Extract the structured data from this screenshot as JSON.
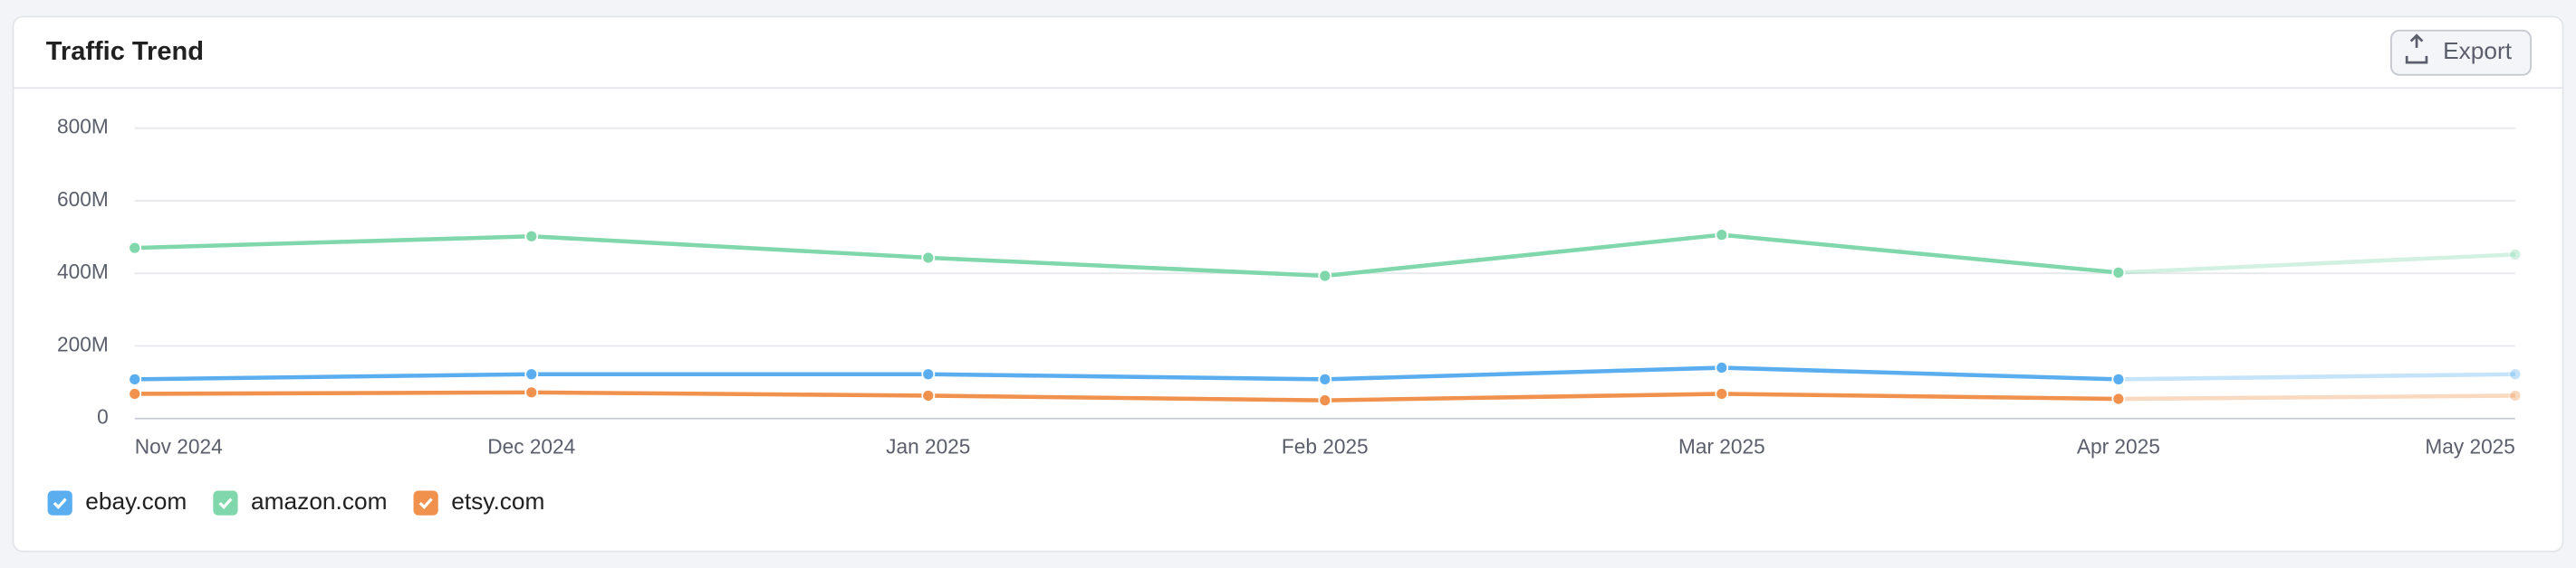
{
  "export_label": "Export",
  "chart_data": {
    "type": "line",
    "title": "Traffic Trend",
    "categories": [
      "Nov 2024",
      "Dec 2024",
      "Jan 2025",
      "Feb 2025",
      "Mar 2025",
      "Apr 2025",
      "May 2025"
    ],
    "series": [
      {
        "name": "ebay.com",
        "color": "#5aaeef",
        "values": [
          108000000,
          122000000,
          122000000,
          108000000,
          140000000,
          108000000,
          122000000
        ]
      },
      {
        "name": "amazon.com",
        "color": "#7fd7ab",
        "values": [
          470000000,
          502000000,
          443000000,
          393000000,
          506000000,
          402000000,
          452000000
        ]
      },
      {
        "name": "etsy.com",
        "color": "#f0914d",
        "values": [
          68000000,
          72000000,
          63000000,
          50000000,
          68000000,
          54000000,
          63000000
        ]
      }
    ],
    "ylim": [
      0,
      800000000
    ],
    "yticks": [
      0,
      {
        "value": 200000000,
        "label": "200M"
      },
      {
        "value": 400000000,
        "label": "400M"
      },
      {
        "value": 600000000,
        "label": "600M"
      },
      {
        "value": 800000000,
        "label": "800M"
      }
    ],
    "grid": true
  }
}
